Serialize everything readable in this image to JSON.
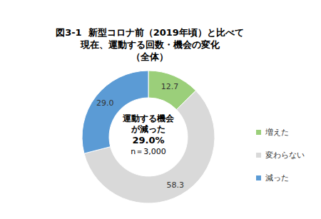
{
  "chart_data": {
    "type": "pie",
    "title": "図3-1  新型コロナ前（2019年頃）と比べて\n現在、運動する回数・機会の変化\n（全体）",
    "annotations": [
      "運動する機会\nが減った",
      "29.0%",
      "n＝3,000"
    ],
    "categories": [
      "増えた",
      "変わらない",
      "減った"
    ],
    "values": [
      12.7,
      58.3,
      29.0
    ],
    "value_labels": [
      "12.7",
      "58.3",
      "29.0"
    ],
    "colors": [
      "#9bcf7a",
      "#d9d9d9",
      "#5b9bd5"
    ],
    "data_labels": true,
    "legend": "right"
  }
}
